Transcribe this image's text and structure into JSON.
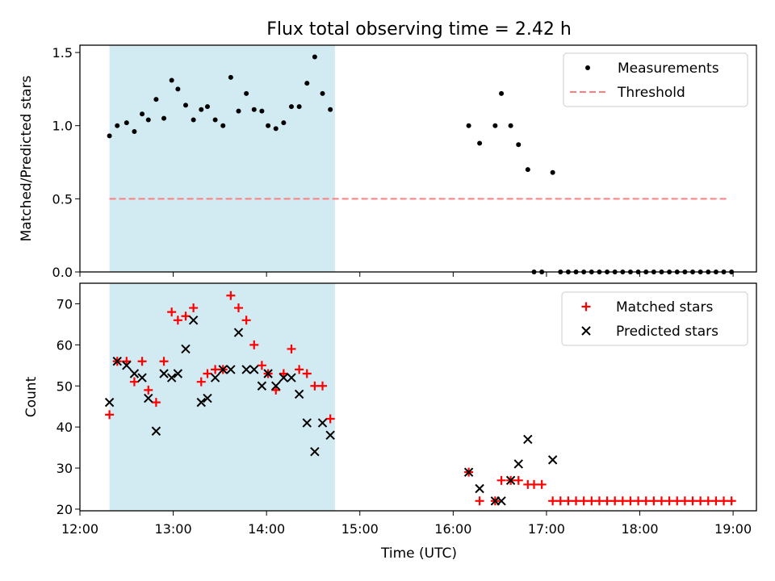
{
  "title": "Flux total observing time = 2.42 h",
  "xlabel": "Time (UTC)",
  "x_ticks": [
    "12:00",
    "13:00",
    "14:00",
    "15:00",
    "16:00",
    "17:00",
    "18:00",
    "19:00"
  ],
  "colors": {
    "span": "#add8e6",
    "threshold": "#ff7f7f",
    "matched": "#ff0000",
    "predicted": "#000000",
    "measurement": "#000000"
  },
  "chart_data": [
    {
      "type": "scatter",
      "panel": "top",
      "ylabel": "Matched/Predicted stars",
      "ylim": [
        0,
        1.55
      ],
      "xlim": [
        "12:00",
        "19:15"
      ],
      "y_ticks": [
        "0.0",
        "0.5",
        "1.0",
        "1.5"
      ],
      "shaded_span": [
        "12:19",
        "14:44"
      ],
      "legend_position": "upper right",
      "threshold": {
        "name": "Threshold",
        "value": 0.5,
        "x_range": [
          "12:19",
          "18:56"
        ]
      },
      "series": [
        {
          "name": "Measurements",
          "points": [
            [
              "12:19",
              0.93
            ],
            [
              "12:24",
              1.0
            ],
            [
              "12:30",
              1.02
            ],
            [
              "12:35",
              0.96
            ],
            [
              "12:40",
              1.08
            ],
            [
              "12:44",
              1.04
            ],
            [
              "12:49",
              1.18
            ],
            [
              "12:54",
              1.05
            ],
            [
              "12:59",
              1.31
            ],
            [
              "13:03",
              1.25
            ],
            [
              "13:08",
              1.14
            ],
            [
              "13:13",
              1.04
            ],
            [
              "13:18",
              1.11
            ],
            [
              "13:22",
              1.13
            ],
            [
              "13:27",
              1.04
            ],
            [
              "13:32",
              1.0
            ],
            [
              "13:37",
              1.33
            ],
            [
              "13:42",
              1.1
            ],
            [
              "13:47",
              1.22
            ],
            [
              "13:52",
              1.11
            ],
            [
              "13:57",
              1.1
            ],
            [
              "14:01",
              1.0
            ],
            [
              "14:06",
              0.98
            ],
            [
              "14:11",
              1.02
            ],
            [
              "14:16",
              1.13
            ],
            [
              "14:21",
              1.13
            ],
            [
              "14:26",
              1.29
            ],
            [
              "14:31",
              1.47
            ],
            [
              "14:36",
              1.22
            ],
            [
              "14:41",
              1.11
            ],
            [
              "16:10",
              1.0
            ],
            [
              "16:17",
              0.88
            ],
            [
              "16:27",
              1.0
            ],
            [
              "16:31",
              1.22
            ],
            [
              "16:37",
              1.0
            ],
            [
              "16:42",
              0.87
            ],
            [
              "16:48",
              0.7
            ],
            [
              "17:04",
              0.68
            ],
            [
              "16:52",
              0.0
            ],
            [
              "16:57",
              0.0
            ],
            [
              "17:09",
              0.0
            ],
            [
              "17:14",
              0.0
            ],
            [
              "17:19",
              0.0
            ],
            [
              "17:24",
              0.0
            ],
            [
              "17:29",
              0.0
            ],
            [
              "17:34",
              0.0
            ],
            [
              "17:39",
              0.0
            ],
            [
              "17:44",
              0.0
            ],
            [
              "17:49",
              0.0
            ],
            [
              "17:54",
              0.0
            ],
            [
              "17:59",
              0.0
            ],
            [
              "18:04",
              0.0
            ],
            [
              "18:09",
              0.0
            ],
            [
              "18:14",
              0.0
            ],
            [
              "18:19",
              0.0
            ],
            [
              "18:24",
              0.0
            ],
            [
              "18:29",
              0.0
            ],
            [
              "18:34",
              0.0
            ],
            [
              "18:39",
              0.0
            ],
            [
              "18:44",
              0.0
            ],
            [
              "18:49",
              0.0
            ],
            [
              "18:54",
              0.0
            ],
            [
              "18:59",
              0.0
            ]
          ]
        }
      ]
    },
    {
      "type": "scatter",
      "panel": "bottom",
      "ylabel": "Count",
      "ylim": [
        19.6,
        75
      ],
      "xlim": [
        "12:00",
        "19:15"
      ],
      "y_ticks": [
        "20",
        "30",
        "40",
        "50",
        "60",
        "70"
      ],
      "shaded_span": [
        "12:19",
        "14:44"
      ],
      "legend_position": "upper right",
      "series": [
        {
          "name": "Matched stars",
          "marker": "+",
          "points": [
            [
              "12:19",
              43
            ],
            [
              "12:24",
              56
            ],
            [
              "12:30",
              56
            ],
            [
              "12:35",
              51
            ],
            [
              "12:40",
              56
            ],
            [
              "12:44",
              49
            ],
            [
              "12:49",
              46
            ],
            [
              "12:54",
              56
            ],
            [
              "12:59",
              68
            ],
            [
              "13:03",
              66
            ],
            [
              "13:08",
              67
            ],
            [
              "13:13",
              69
            ],
            [
              "13:18",
              51
            ],
            [
              "13:22",
              53
            ],
            [
              "13:27",
              54
            ],
            [
              "13:32",
              54
            ],
            [
              "13:37",
              72
            ],
            [
              "13:42",
              69
            ],
            [
              "13:47",
              66
            ],
            [
              "13:52",
              60
            ],
            [
              "13:57",
              55
            ],
            [
              "14:01",
              53
            ],
            [
              "14:06",
              49
            ],
            [
              "14:11",
              53
            ],
            [
              "14:16",
              59
            ],
            [
              "14:21",
              54
            ],
            [
              "14:26",
              53
            ],
            [
              "14:31",
              50
            ],
            [
              "14:36",
              50
            ],
            [
              "14:41",
              42
            ],
            [
              "16:10",
              29
            ],
            [
              "16:17",
              22
            ],
            [
              "16:27",
              22
            ],
            [
              "16:31",
              27
            ],
            [
              "16:37",
              27
            ],
            [
              "16:42",
              27
            ],
            [
              "16:48",
              26
            ],
            [
              "16:52",
              26
            ],
            [
              "16:57",
              26
            ],
            [
              "17:04",
              22
            ],
            [
              "17:09",
              22
            ],
            [
              "17:14",
              22
            ],
            [
              "17:19",
              22
            ],
            [
              "17:24",
              22
            ],
            [
              "17:29",
              22
            ],
            [
              "17:34",
              22
            ],
            [
              "17:39",
              22
            ],
            [
              "17:44",
              22
            ],
            [
              "17:49",
              22
            ],
            [
              "17:54",
              22
            ],
            [
              "17:59",
              22
            ],
            [
              "18:04",
              22
            ],
            [
              "18:09",
              22
            ],
            [
              "18:14",
              22
            ],
            [
              "18:19",
              22
            ],
            [
              "18:24",
              22
            ],
            [
              "18:29",
              22
            ],
            [
              "18:34",
              22
            ],
            [
              "18:39",
              22
            ],
            [
              "18:44",
              22
            ],
            [
              "18:49",
              22
            ],
            [
              "18:54",
              22
            ],
            [
              "18:59",
              22
            ]
          ]
        },
        {
          "name": "Predicted stars",
          "marker": "x",
          "points": [
            [
              "12:19",
              46
            ],
            [
              "12:24",
              56
            ],
            [
              "12:30",
              55
            ],
            [
              "12:35",
              53
            ],
            [
              "12:40",
              52
            ],
            [
              "12:44",
              47
            ],
            [
              "12:49",
              39
            ],
            [
              "12:54",
              53
            ],
            [
              "12:59",
              52
            ],
            [
              "13:03",
              53
            ],
            [
              "13:08",
              59
            ],
            [
              "13:13",
              66
            ],
            [
              "13:18",
              46
            ],
            [
              "13:22",
              47
            ],
            [
              "13:27",
              52
            ],
            [
              "13:32",
              54
            ],
            [
              "13:37",
              54
            ],
            [
              "13:42",
              63
            ],
            [
              "13:47",
              54
            ],
            [
              "13:52",
              54
            ],
            [
              "13:57",
              50
            ],
            [
              "14:01",
              53
            ],
            [
              "14:06",
              50
            ],
            [
              "14:11",
              52
            ],
            [
              "14:16",
              52
            ],
            [
              "14:21",
              48
            ],
            [
              "14:26",
              41
            ],
            [
              "14:31",
              34
            ],
            [
              "14:36",
              41
            ],
            [
              "14:41",
              38
            ],
            [
              "16:10",
              29
            ],
            [
              "16:17",
              25
            ],
            [
              "16:27",
              22
            ],
            [
              "16:31",
              22
            ],
            [
              "16:37",
              27
            ],
            [
              "16:42",
              31
            ],
            [
              "16:48",
              37
            ],
            [
              "17:04",
              32
            ]
          ]
        }
      ]
    }
  ]
}
